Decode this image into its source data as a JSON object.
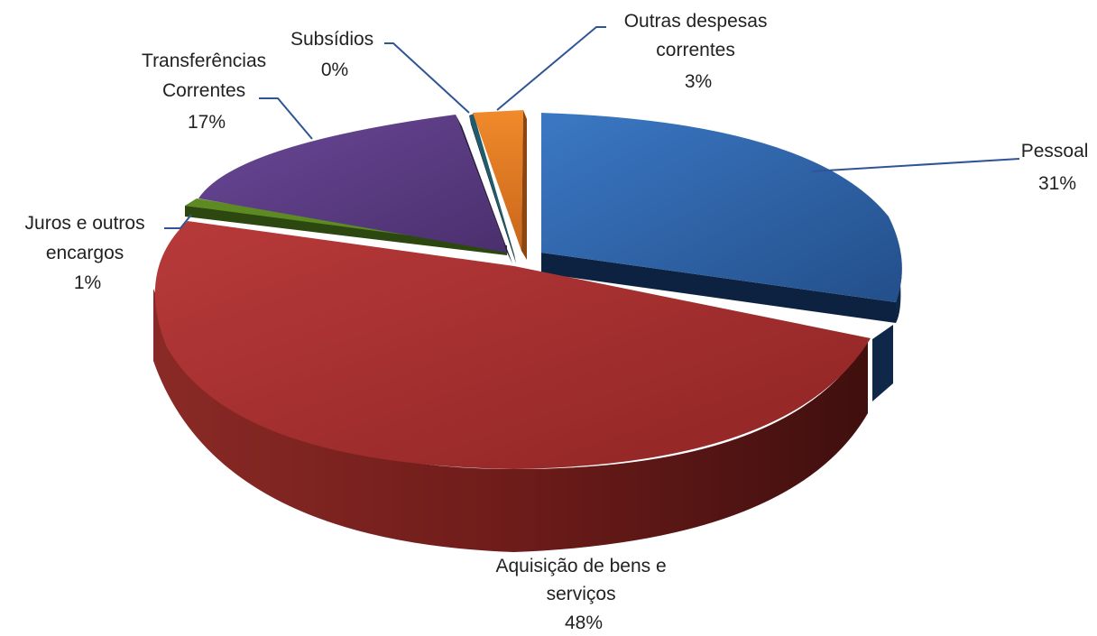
{
  "chart_data": {
    "type": "pie",
    "title": "",
    "slices": [
      {
        "label": "Pessoal",
        "percent_label": "31%",
        "value": 31,
        "color": "#2e63a8"
      },
      {
        "label": "Aquisição de bens e serviços",
        "percent_label": "48%",
        "value": 48,
        "color": "#a83232"
      },
      {
        "label": "Juros e outros encargos",
        "percent_label": "1%",
        "value": 1,
        "color": "#4f7a1c"
      },
      {
        "label": "Transferências Correntes",
        "percent_label": "17%",
        "value": 17,
        "color": "#5e3d86"
      },
      {
        "label": "Subsídios",
        "percent_label": "0%",
        "value": 0,
        "color": "#1f5b6b"
      },
      {
        "label": "Outras despesas correntes",
        "percent_label": "3%",
        "value": 3,
        "color": "#e07b22"
      }
    ],
    "style": "3d-exploded"
  }
}
